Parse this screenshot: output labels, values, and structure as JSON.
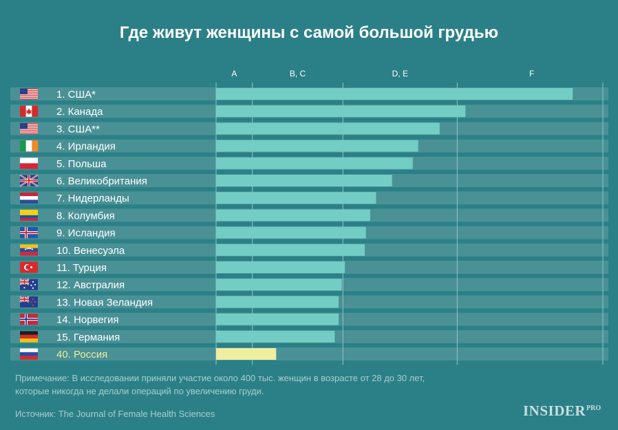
{
  "title": "Где живут женщины с самой большой грудью",
  "note": {
    "line1": "Примечание: В исследовании приняли участие около 400 тыс. женщин в возрасте от 28 до 30 лет,",
    "line2": "которые никогда не делали операций по увеличению груди."
  },
  "source": "Источник: The Journal of Female Health Sciences",
  "logo": {
    "main": "INSIDER",
    "suffix": "PRO"
  },
  "colors": {
    "background": "#2b8087",
    "row": "#4a9196",
    "bar": "#73cdc4",
    "highlight_bar": "#eeeea0",
    "highlight_text": "#ecec9a",
    "text": "#ffffff",
    "grid": "#8fc7c9"
  },
  "chart_data": {
    "type": "bar",
    "orientation": "horizontal",
    "title": "Где живут женщины с самой большой грудью",
    "xlim": [
      0,
      100
    ],
    "x_unit_note": "relative cup-size scale, estimated from bar lengths",
    "axis_categories": [
      {
        "label": "A",
        "start": 0,
        "end": 9.3
      },
      {
        "label": "B, C",
        "start": 9.3,
        "end": 32.5
      },
      {
        "label": "D, E",
        "start": 32.5,
        "end": 61.8
      },
      {
        "label": "F",
        "start": 61.8,
        "end": 100
      }
    ],
    "rows": [
      {
        "label": "1. США*",
        "flag": "us",
        "value": 91.4,
        "highlight": false
      },
      {
        "label": "2. Канада",
        "flag": "ca",
        "value": 63.9,
        "highlight": false
      },
      {
        "label": "3. США**",
        "flag": "us",
        "value": 57.3,
        "highlight": false
      },
      {
        "label": "4. Ирландия",
        "flag": "ie",
        "value": 51.8,
        "highlight": false
      },
      {
        "label": "5. Польша",
        "flag": "pl",
        "value": 50.4,
        "highlight": false
      },
      {
        "label": "6. Великобритания",
        "flag": "gb",
        "value": 45.1,
        "highlight": false
      },
      {
        "label": "7. Нидерланды",
        "flag": "nl",
        "value": 41.0,
        "highlight": false
      },
      {
        "label": "8. Колумбия",
        "flag": "co",
        "value": 39.5,
        "highlight": false
      },
      {
        "label": "9. Исландия",
        "flag": "is",
        "value": 38.4,
        "highlight": false
      },
      {
        "label": "10. Венесуэла",
        "flag": "ve",
        "value": 38.1,
        "highlight": false
      },
      {
        "label": "11. Турция",
        "flag": "tr",
        "value": 33.0,
        "highlight": false
      },
      {
        "label": "12. Австралия",
        "flag": "au",
        "value": 32.2,
        "highlight": false
      },
      {
        "label": "13. Новая Зеландия",
        "flag": "nz",
        "value": 31.4,
        "highlight": false
      },
      {
        "label": "14. Норвегия",
        "flag": "no",
        "value": 31.4,
        "highlight": false
      },
      {
        "label": "15. Германия",
        "flag": "de",
        "value": 30.4,
        "highlight": false
      },
      {
        "label": "40. Россия",
        "flag": "ru",
        "value": 15.4,
        "highlight": true
      }
    ]
  }
}
